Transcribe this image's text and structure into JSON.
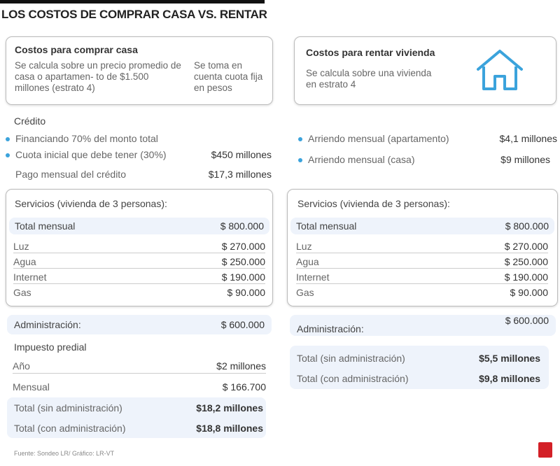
{
  "title": "LOS COSTOS DE COMPRAR CASA VS. RENTAR",
  "buy": {
    "heading": "Costos para comprar casa",
    "note1": "Se calcula sobre un precio promedio de casa o apartamen- to de $1.500 millones (estrato 4)",
    "note2": "Se toma en cuenta cuota fija en pesos"
  },
  "rent": {
    "heading": "Costos para rentar vivienda",
    "note": "Se calcula sobre una vivienda en estrato 4",
    "icon": "house-icon"
  },
  "credit": {
    "heading": "Crédito",
    "items": [
      {
        "label": "Financiando 70% del monto total",
        "value": ""
      },
      {
        "label": "Cuota inicial que debe tener (30%)",
        "value": "$450 millones"
      },
      {
        "label": "Pago mensual del crédito",
        "value": "$17,3 millones"
      }
    ]
  },
  "rentals": [
    {
      "label": "Arriendo mensual (apartamento)",
      "value": "$4,1 millones"
    },
    {
      "label": "Arriendo mensual (casa)",
      "value": "$9 millones"
    }
  ],
  "services": {
    "heading": "Servicios (vivienda de 3 personas):",
    "total_label": "Total mensual",
    "total": "$ 800.000",
    "items": [
      {
        "label": "Luz",
        "value": "$ 270.000"
      },
      {
        "label": "Agua",
        "value": "$ 250.000"
      },
      {
        "label": "Internet",
        "value": "$ 190.000"
      },
      {
        "label": "Gas",
        "value": "$ 90.000"
      }
    ]
  },
  "admin": {
    "label": "Administración:",
    "value": "$ 600.000"
  },
  "predial": {
    "heading": "Impuesto predial",
    "year_label": "Año",
    "year_value": "$2 millones",
    "month_label": "Mensual",
    "month_value": "$ 166.700"
  },
  "buy_totals": [
    {
      "label": "Total (sin administración)",
      "value": "$18,2 millones"
    },
    {
      "label": "Total (con administración)",
      "value": "$18,8 millones"
    }
  ],
  "rent_totals": [
    {
      "label": "Total (sin administración)",
      "value": "$5,5 millones"
    },
    {
      "label": "Total (con administración)",
      "value": "$9,8 millones"
    }
  ],
  "footer": "Fuente: Sondeo LR/ Gráfico: LR-VT",
  "logo": "LR",
  "colors": {
    "accent": "#3ba3dc",
    "highlight": "#eef3fb",
    "logo": "#d32027"
  }
}
